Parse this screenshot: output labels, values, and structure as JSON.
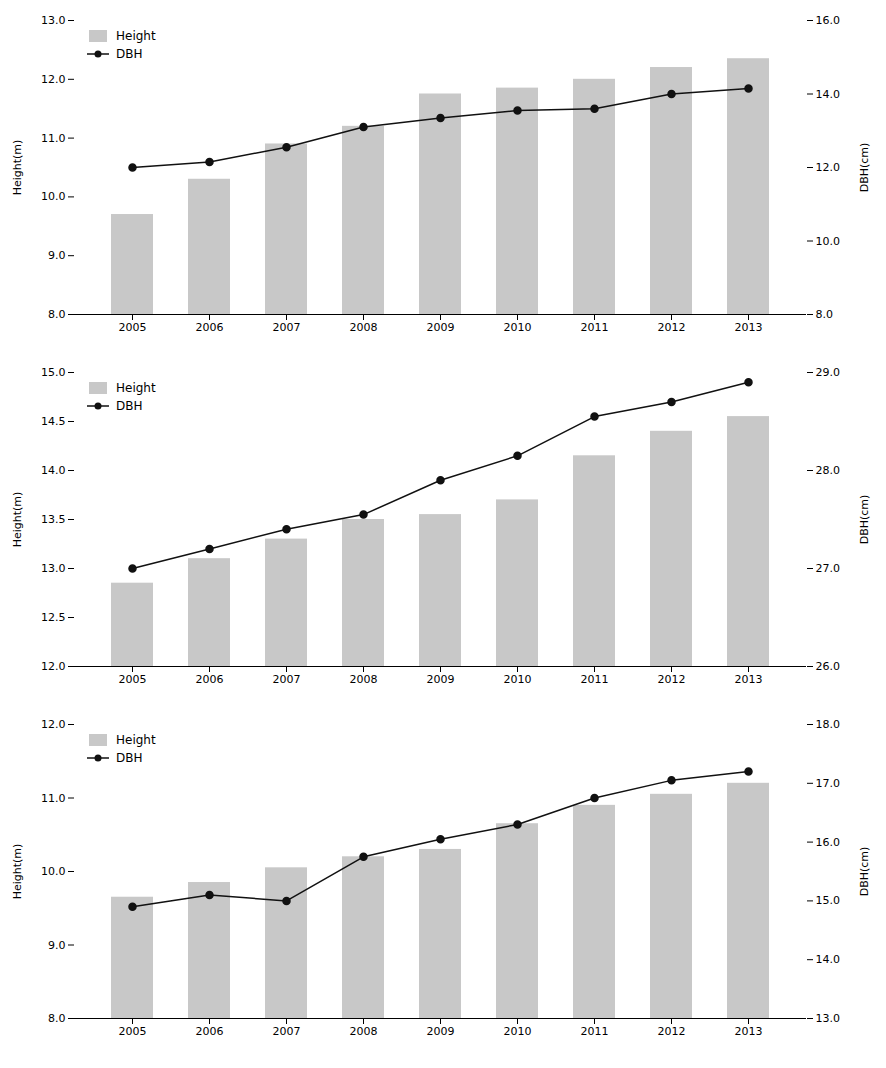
{
  "chart_data": [
    {
      "type": "bar",
      "categories": [
        "2005",
        "2006",
        "2007",
        "2008",
        "2009",
        "2010",
        "2011",
        "2012",
        "2013"
      ],
      "ylabel": "Height(m)",
      "y2label": "DBH(cm)",
      "ylim": [
        8.0,
        13.0
      ],
      "yticks": [
        {
          "value": 8.0,
          "label": "8.0"
        },
        {
          "value": 9.0,
          "label": "9.0"
        },
        {
          "value": 10.0,
          "label": "10.0"
        },
        {
          "value": 11.0,
          "label": "11.0"
        },
        {
          "value": 12.0,
          "label": "12.0"
        },
        {
          "value": 13.0,
          "label": "13.0"
        }
      ],
      "y2lim": [
        8.0,
        16.0
      ],
      "y2ticks": [
        {
          "value": 8.0,
          "label": "8.0"
        },
        {
          "value": 10.0,
          "label": "10.0"
        },
        {
          "value": 12.0,
          "label": "12.0"
        },
        {
          "value": 14.0,
          "label": "14.0"
        },
        {
          "value": 16.0,
          "label": "16.0"
        }
      ],
      "grid": false,
      "legend": "upper left",
      "series": [
        {
          "name": "Height",
          "type": "bar",
          "color": "#c8c8c8",
          "values": [
            9.7,
            10.3,
            10.9,
            11.2,
            11.75,
            11.85,
            12.0,
            12.2,
            12.35
          ]
        },
        {
          "name": "DBH",
          "type": "line",
          "axis": "y2",
          "color": "#111111",
          "marker": "circle",
          "values": [
            12.0,
            12.15,
            12.55,
            13.1,
            13.35,
            13.55,
            13.6,
            14.0,
            14.15
          ]
        }
      ]
    },
    {
      "type": "bar",
      "categories": [
        "2005",
        "2006",
        "2007",
        "2008",
        "2009",
        "2010",
        "2011",
        "2012",
        "2013"
      ],
      "ylabel": "Height(m)",
      "y2label": "DBH(cm)",
      "ylim": [
        12.0,
        15.0
      ],
      "yticks": [
        {
          "value": 12.0,
          "label": "12.0"
        },
        12.5,
        {
          "value": 13.0,
          "label": "13.0"
        },
        13.5,
        {
          "value": 14.0,
          "label": "14.0"
        },
        14.5,
        {
          "value": 15.0,
          "label": "15.0"
        }
      ],
      "y2lim": [
        26.0,
        29.0
      ],
      "y2ticks": [
        {
          "value": 26.0,
          "label": "26.0"
        },
        {
          "value": 27.0,
          "label": "27.0"
        },
        {
          "value": 28.0,
          "label": "28.0"
        },
        {
          "value": 29.0,
          "label": "29.0"
        }
      ],
      "grid": false,
      "legend": "upper left",
      "series": [
        {
          "name": "Height",
          "type": "bar",
          "color": "#c8c8c8",
          "values": [
            12.85,
            13.1,
            13.3,
            13.5,
            13.55,
            13.7,
            14.15,
            14.4,
            14.55
          ]
        },
        {
          "name": "DBH",
          "type": "line",
          "axis": "y2",
          "color": "#111111",
          "marker": "circle",
          "values": [
            27.0,
            27.2,
            27.4,
            27.55,
            27.9,
            28.15,
            28.55,
            28.7,
            28.9
          ]
        }
      ]
    },
    {
      "type": "bar",
      "categories": [
        "2005",
        "2006",
        "2007",
        "2008",
        "2009",
        "2010",
        "2011",
        "2012",
        "2013"
      ],
      "ylabel": "Height(m)",
      "y2label": "DBH(cm)",
      "ylim": [
        8.0,
        12.0
      ],
      "yticks": [
        {
          "value": 8.0,
          "label": "8.0"
        },
        {
          "value": 9.0,
          "label": "9.0"
        },
        {
          "value": 10.0,
          "label": "10.0"
        },
        {
          "value": 11.0,
          "label": "11.0"
        },
        {
          "value": 12.0,
          "label": "12.0"
        }
      ],
      "y2lim": [
        13.0,
        18.0
      ],
      "y2ticks": [
        {
          "value": 13.0,
          "label": "13.0"
        },
        {
          "value": 14.0,
          "label": "14.0"
        },
        {
          "value": 15.0,
          "label": "15.0"
        },
        {
          "value": 16.0,
          "label": "16.0"
        },
        {
          "value": 17.0,
          "label": "17.0"
        },
        {
          "value": 18.0,
          "label": "18.0"
        }
      ],
      "grid": false,
      "legend": "upper left",
      "series": [
        {
          "name": "Height",
          "type": "bar",
          "color": "#c8c8c8",
          "values": [
            9.65,
            9.85,
            10.05,
            10.2,
            10.3,
            10.65,
            10.9,
            11.05,
            11.2
          ]
        },
        {
          "name": "DBH",
          "type": "line",
          "axis": "y2",
          "color": "#111111",
          "marker": "circle",
          "values": [
            14.9,
            15.1,
            15.0,
            15.75,
            16.05,
            16.3,
            16.75,
            17.05,
            17.2
          ]
        }
      ]
    }
  ]
}
